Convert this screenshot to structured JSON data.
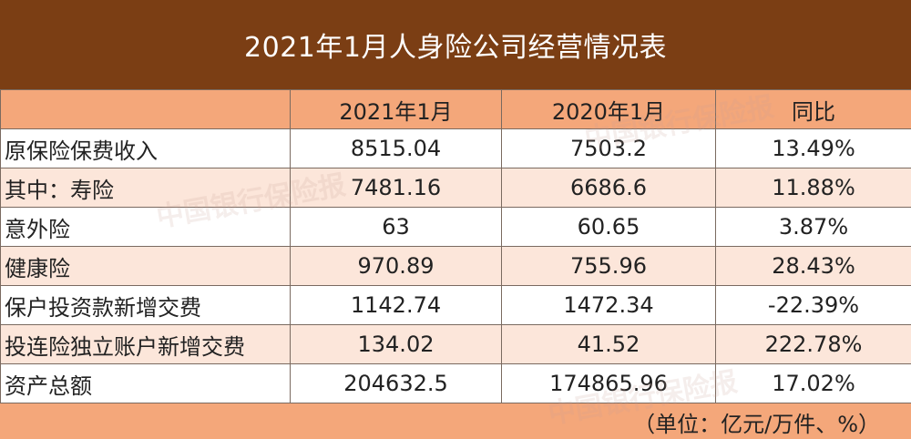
{
  "title": "2021年1月人身险公司经营情况表",
  "table": {
    "headers": [
      "",
      "2021年1月",
      "2020年1月",
      "同比"
    ],
    "rows": [
      {
        "label": "原保险保费收入",
        "v2021": "8515.04",
        "v2020": "7503.2",
        "yoy": "13.49%"
      },
      {
        "label": "其中：寿险",
        "v2021": "7481.16",
        "v2020": "6686.6",
        "yoy": "11.88%"
      },
      {
        "label": "意外险",
        "v2021": "63",
        "v2020": "60.65",
        "yoy": "3.87%"
      },
      {
        "label": "健康险",
        "v2021": "970.89",
        "v2020": "755.96",
        "yoy": "28.43%"
      },
      {
        "label": "保户投资款新增交费",
        "v2021": "1142.74",
        "v2020": "1472.34",
        "yoy": "-22.39%"
      },
      {
        "label": "投连险独立账户新增交费",
        "v2021": "134.02",
        "v2020": "41.52",
        "yoy": "222.78%"
      },
      {
        "label": "资产总额",
        "v2021": "204632.5",
        "v2020": "174865.96",
        "yoy": "17.02%"
      }
    ]
  },
  "unit_note": "（单位：亿元/万件、%）",
  "watermark": "中国银行保险报",
  "colors": {
    "header_bg": "#7B3E14",
    "accent": "#F4A77A",
    "row_alt": "#FCE6DA"
  }
}
